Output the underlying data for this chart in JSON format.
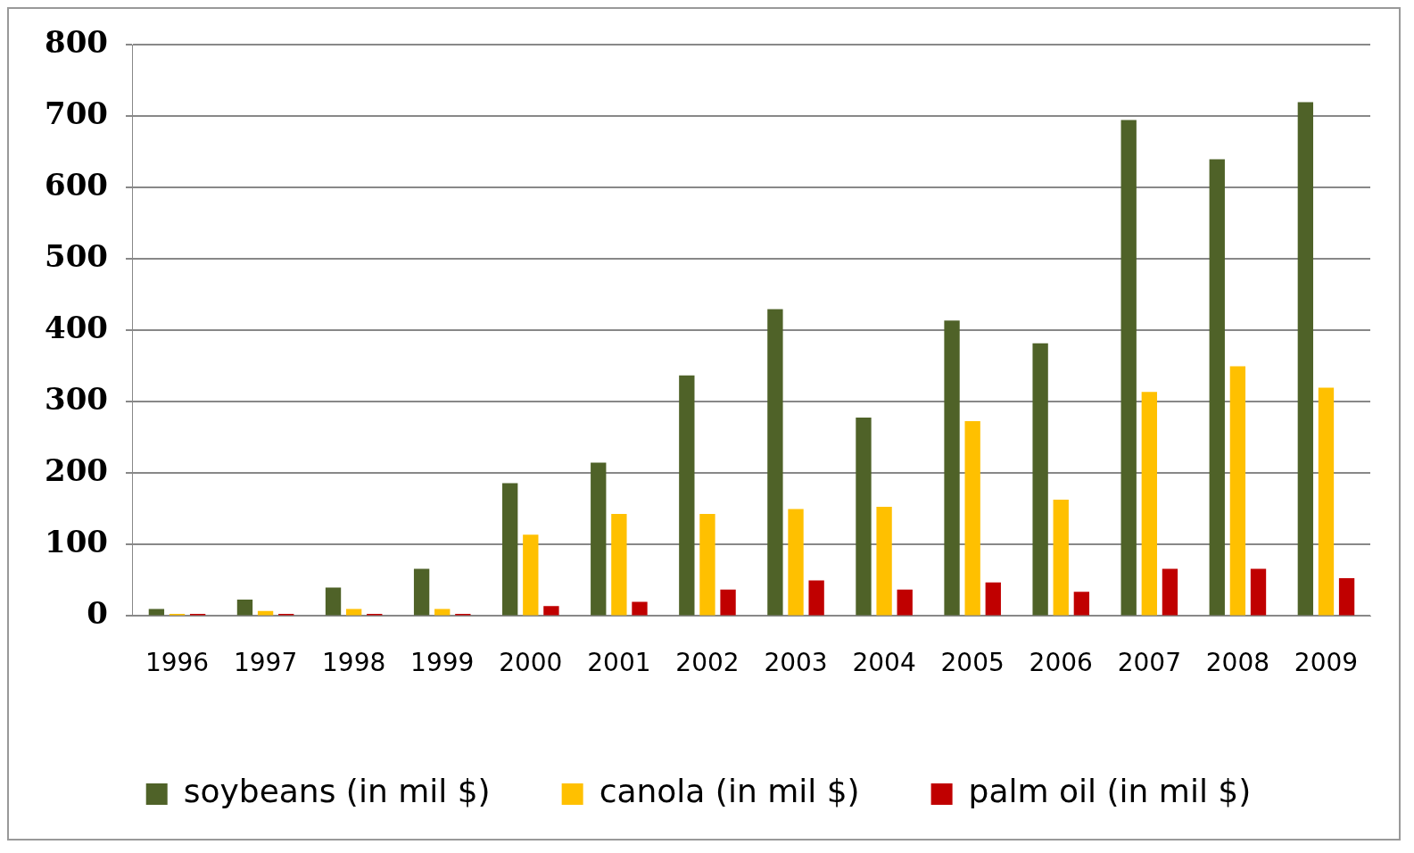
{
  "chart_data": {
    "type": "bar",
    "categories": [
      "1996",
      "1997",
      "1998",
      "1999",
      "2000",
      "2001",
      "2002",
      "2003",
      "2004",
      "2005",
      "2006",
      "2007",
      "2008",
      "2009"
    ],
    "series": [
      {
        "name": "soybeans (in mil $)",
        "color": "#4f6228",
        "values": [
          10,
          23,
          40,
          66,
          186,
          215,
          337,
          430,
          278,
          414,
          382,
          695,
          640,
          720
        ]
      },
      {
        "name": "canola (in mil $)",
        "color": "#ffc000",
        "values": [
          3,
          7,
          10,
          10,
          114,
          143,
          143,
          150,
          153,
          273,
          163,
          314,
          350,
          320
        ]
      },
      {
        "name": "palm oil (in mil $)",
        "color": "#c00000",
        "values": [
          3,
          3,
          3,
          3,
          14,
          20,
          37,
          50,
          37,
          47,
          34,
          66,
          66,
          53
        ]
      }
    ],
    "ylim": [
      0,
      800
    ],
    "yticks": [
      0,
      100,
      200,
      300,
      400,
      500,
      600,
      700,
      800
    ],
    "grid": "y",
    "legend": "bottom"
  }
}
